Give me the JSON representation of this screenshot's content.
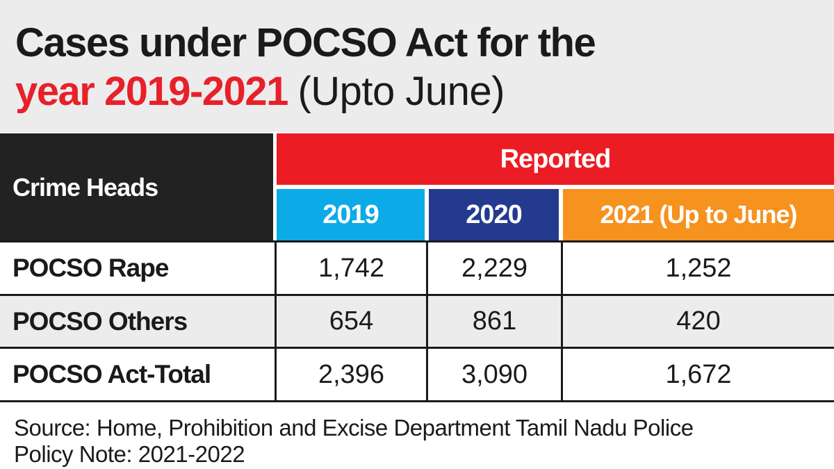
{
  "chart_data": {
    "type": "table",
    "title_line1": "Cases under POCSO Act for the",
    "title_line2_highlight": "year 2019-2021",
    "title_line2_rest": "(Upto June)",
    "row_header": "Crime Heads",
    "group_header": "Reported",
    "columns": [
      "2019",
      "2020",
      "2021 (Up to June)"
    ],
    "rows": [
      {
        "label": "POCSO Rape",
        "values": [
          "1,742",
          "2,229",
          "1,252"
        ]
      },
      {
        "label": "POCSO Others",
        "values": [
          "654",
          "861",
          "420"
        ]
      },
      {
        "label": "POCSO Act-Total",
        "values": [
          "2,396",
          "3,090",
          "1,672"
        ]
      }
    ],
    "source_line1": "Source: Home, Prohibition and Excise Department Tamil Nadu Police",
    "source_line2": "Policy Note: 2021-2022",
    "colors": {
      "red": "#ec1c24",
      "cyan": "#0cabe8",
      "navy": "#233a8f",
      "orange": "#f6921e",
      "dark": "#222222"
    }
  }
}
